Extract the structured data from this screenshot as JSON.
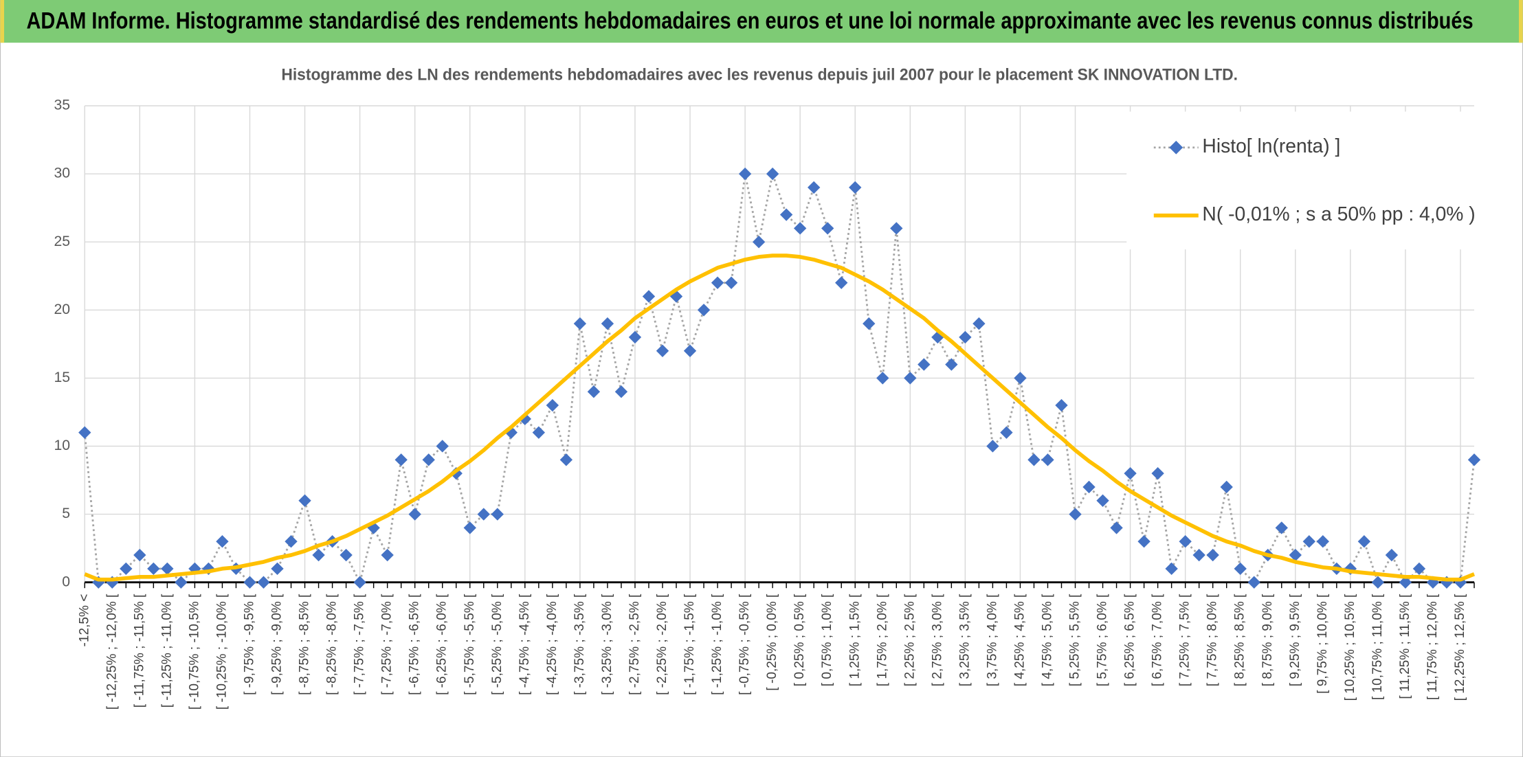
{
  "header": {
    "title": "ADAM Informe. Histogramme standardisé des rendements hebdomadaires en euros et une loi normale approximante avec les revenus connus distribués"
  },
  "chart_data": {
    "type": "line",
    "title": "Histogramme des LN des rendements hebdomadaires avec les revenus depuis juil 2007 pour le placement SK INNOVATION LTD.",
    "categories": [
      "-12,5% <",
      null,
      "[ -12,25% ; -12,0% [",
      null,
      "[ -11,75% ; -11,5% [",
      null,
      "[ -11,25% ; -11,0% [",
      null,
      "[ -10,75% ; -10,5% [",
      null,
      "[ -10,25% ; -10,0% [",
      null,
      "[ -9,75% ; -9,5% [",
      null,
      "[ -9,25% ; -9,0% [",
      null,
      "[ -8,75% ; -8,5% [",
      null,
      "[ -8,25% ; -8,0% [",
      null,
      "[ -7,75% ; -7,5% [",
      null,
      "[ -7,25% ; -7,0% [",
      null,
      "[ -6,75% ; -6,5% [",
      null,
      "[ -6,25% ; -6,0% [",
      null,
      "[ -5,75% ; -5,5% [",
      null,
      "[ -5,25% ; -5,0% [",
      null,
      "[ -4,75% ; -4,5% [",
      null,
      "[ -4,25% ; -4,0% [",
      null,
      "[ -3,75% ; -3,5% [",
      null,
      "[ -3,25% ; -3,0% [",
      null,
      "[ -2,75% ; -2,5% [",
      null,
      "[ -2,25% ; -2,0% [",
      null,
      "[ -1,75% ; -1,5% [",
      null,
      "[ -1,25% ; -1,0% [",
      null,
      "[ -0,75% ; -0,5% [",
      null,
      "[ -0,25% ; 0,0% [",
      null,
      "[ 0,25% ; 0,5% [",
      null,
      "[ 0,75% ; 1,0% [",
      null,
      "[ 1,25% ; 1,5% [",
      null,
      "[ 1,75% ; 2,0% [",
      null,
      "[ 2,25% ; 2,5% [",
      null,
      "[ 2,75% ; 3,0% [",
      null,
      "[ 3,25% ; 3,5% [",
      null,
      "[ 3,75% ; 4,0% [",
      null,
      "[ 4,25% ; 4,5% [",
      null,
      "[ 4,75% ; 5,0% [",
      null,
      "[ 5,25% ; 5,5% [",
      null,
      "[ 5,75% ; 6,0% [",
      null,
      "[ 6,25% ; 6,5% [",
      null,
      "[ 6,75% ; 7,0% [",
      null,
      "[ 7,25% ; 7,5% [",
      null,
      "[ 7,75% ; 8,0% [",
      null,
      "[ 8,25% ; 8,5% [",
      null,
      "[ 8,75% ; 9,0% [",
      null,
      "[ 9,25% ; 9,5% [",
      null,
      "[ 9,75% ; 10,0% [",
      null,
      "[ 10,25% ; 10,5% [",
      null,
      "[ 10,75% ; 11,0% [",
      null,
      "[ 11,25% ; 11,5% [",
      null,
      "[ 11,75% ; 12,0% [",
      null,
      "[ 12,25% ; 12,5% [",
      null
    ],
    "series": [
      {
        "name": "Histo[ ln(renta) ]",
        "color": "#4472c4",
        "line_color": "#a5a5a5",
        "line_style": "dotted",
        "values": [
          11,
          0,
          0,
          1,
          2,
          1,
          1,
          0,
          1,
          1,
          3,
          1,
          0,
          0,
          1,
          3,
          6,
          2,
          3,
          2,
          0,
          4,
          2,
          9,
          5,
          9,
          10,
          8,
          4,
          5,
          5,
          11,
          12,
          11,
          13,
          9,
          19,
          14,
          19,
          14,
          18,
          21,
          17,
          21,
          17,
          20,
          22,
          22,
          30,
          25,
          30,
          27,
          26,
          29,
          26,
          22,
          29,
          19,
          15,
          26,
          15,
          16,
          18,
          16,
          18,
          19,
          10,
          11,
          15,
          9,
          9,
          13,
          5,
          7,
          6,
          4,
          8,
          3,
          8,
          1,
          3,
          2,
          2,
          7,
          1,
          0,
          2,
          4,
          2,
          3,
          3,
          1,
          1,
          3,
          0,
          2,
          0,
          1,
          0,
          0,
          0,
          9
        ]
      },
      {
        "name": "N( -0,01% ; s a 50% pp : 4,0% )",
        "color": "#ffc000",
        "line_style": "solid",
        "values": [
          0.6,
          0.2,
          0.2,
          0.3,
          0.4,
          0.4,
          0.5,
          0.6,
          0.7,
          0.8,
          1.0,
          1.1,
          1.3,
          1.5,
          1.8,
          2.0,
          2.3,
          2.7,
          3.0,
          3.4,
          3.9,
          4.4,
          4.9,
          5.5,
          6.1,
          6.7,
          7.4,
          8.2,
          8.9,
          9.7,
          10.6,
          11.4,
          12.3,
          13.2,
          14.1,
          15.0,
          15.9,
          16.8,
          17.7,
          18.5,
          19.4,
          20.1,
          20.8,
          21.5,
          22.1,
          22.6,
          23.1,
          23.4,
          23.7,
          23.9,
          24.0,
          24.0,
          23.9,
          23.7,
          23.4,
          23.1,
          22.6,
          22.1,
          21.5,
          20.8,
          20.1,
          19.4,
          18.5,
          17.7,
          16.8,
          15.9,
          15.0,
          14.1,
          13.2,
          12.3,
          11.4,
          10.6,
          9.7,
          8.9,
          8.2,
          7.4,
          6.7,
          6.1,
          5.5,
          4.9,
          4.4,
          3.9,
          3.4,
          3.0,
          2.7,
          2.3,
          2.0,
          1.8,
          1.5,
          1.3,
          1.1,
          1.0,
          0.8,
          0.7,
          0.6,
          0.5,
          0.4,
          0.4,
          0.3,
          0.2,
          0.2,
          0.6
        ]
      }
    ],
    "ylim": [
      0,
      35
    ],
    "yticks": [
      0,
      5,
      10,
      15,
      20,
      25,
      30,
      35
    ],
    "grid": true,
    "legend": "top-right"
  }
}
